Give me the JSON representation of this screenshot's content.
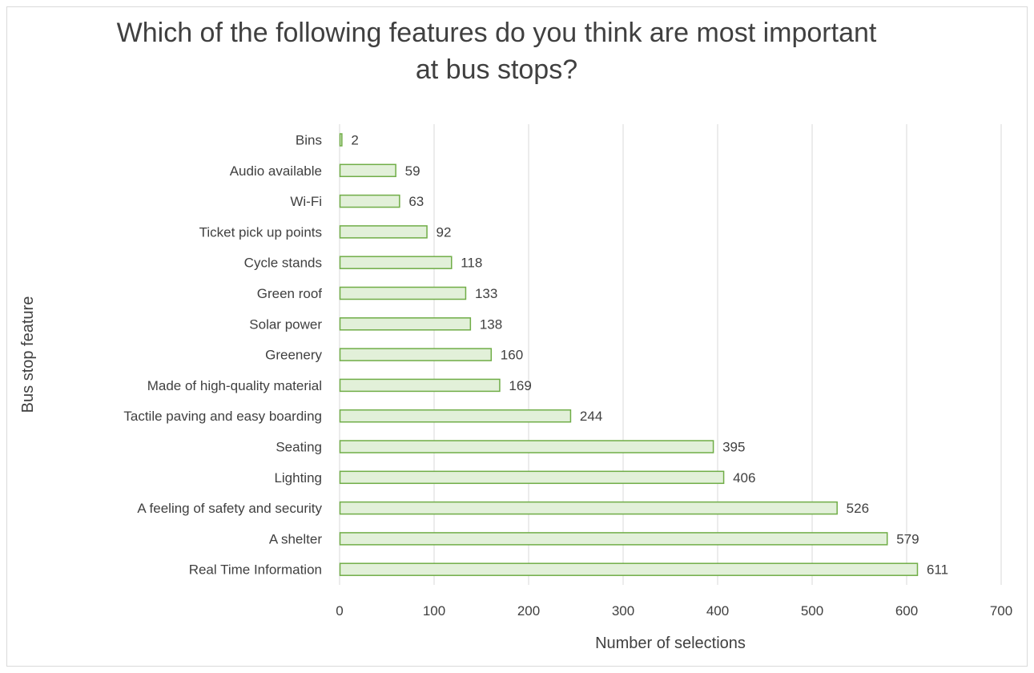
{
  "chart_data": {
    "type": "bar",
    "orientation": "horizontal",
    "title_lines": [
      "Which of the following features do you think are most important",
      "at bus stops?"
    ],
    "xlabel": "Number of selections",
    "ylabel": "Bus stop feature",
    "xlim": [
      0,
      700
    ],
    "xticks": [
      0,
      100,
      200,
      300,
      400,
      500,
      600,
      700
    ],
    "grid": true,
    "legend": "none",
    "categories": [
      "Bins",
      "Audio available",
      "Wi-Fi",
      "Ticket pick up points",
      "Cycle stands",
      "Green roof",
      "Solar power",
      "Greenery",
      "Made of high-quality material",
      "Tactile paving and easy boarding",
      "Seating",
      "Lighting",
      "A feeling of safety and security",
      "A shelter",
      "Real Time Information"
    ],
    "values": [
      2,
      59,
      63,
      92,
      118,
      133,
      138,
      160,
      169,
      244,
      395,
      406,
      526,
      579,
      611
    ],
    "colors": {
      "bar_fill": "#e2f0d9",
      "bar_stroke": "#70ad47",
      "grid": "#d9d9d9",
      "text": "#404040"
    }
  }
}
